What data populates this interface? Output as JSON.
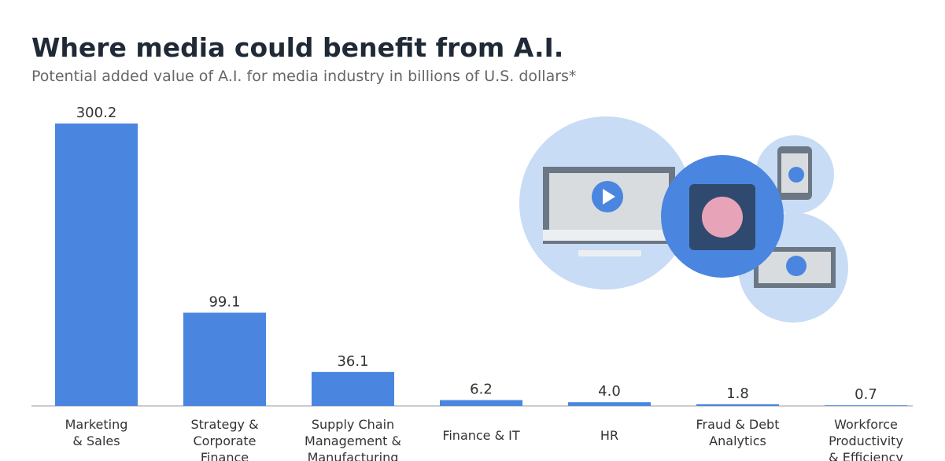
{
  "chart_data": {
    "type": "bar",
    "title": "Where media could benefit from A.I.",
    "subtitle": "Potential added value of A.I. for media industry in billions of U.S. dollars*",
    "categories": [
      "Marketing\n& Sales",
      "Strategy &\nCorporate\nFinance",
      "Supply Chain\nManagement &\nManufacturing",
      "Finance & IT",
      "HR",
      "Fraud & Debt\nAnalytics",
      "Workforce\nProductivity\n& Efficiency"
    ],
    "values": [
      300.2,
      99.1,
      36.1,
      6.2,
      4.0,
      1.8,
      0.7
    ],
    "value_labels": [
      "300.2",
      "99.1",
      "36.1",
      "6.2",
      "4.0",
      "1.8",
      "0.7"
    ],
    "color": "#4a86e0"
  }
}
